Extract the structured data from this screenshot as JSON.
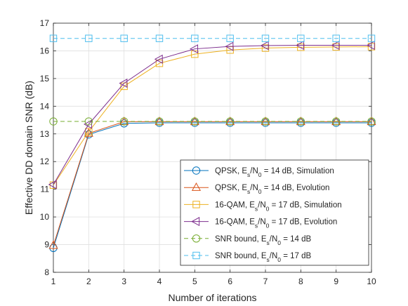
{
  "chart_data": {
    "type": "line",
    "xlabel": "Number of iterations",
    "ylabel": "Effective DD domain SNR (dB)",
    "xlim": [
      1,
      10
    ],
    "ylim": [
      8,
      17
    ],
    "xticks": [
      "1",
      "2",
      "3",
      "4",
      "5",
      "6",
      "7",
      "8",
      "9",
      "10"
    ],
    "yticks": [
      "8",
      "9",
      "10",
      "11",
      "12",
      "13",
      "14",
      "15",
      "16",
      "17"
    ],
    "grid": true,
    "legend_position": "bottom-right",
    "x": [
      1,
      2,
      3,
      4,
      5,
      6,
      7,
      8,
      9,
      10
    ],
    "series": [
      {
        "name_prefix": "QPSK, E",
        "name_mid": "/N",
        "name_suffix": " = 14 dB, Simulation",
        "color": "#0072BD",
        "marker": "circle",
        "dash": "solid",
        "values": [
          8.88,
          12.98,
          13.38,
          13.4,
          13.4,
          13.4,
          13.4,
          13.4,
          13.4,
          13.4
        ]
      },
      {
        "name_prefix": "QPSK, E",
        "name_mid": "/N",
        "name_suffix": " = 14 dB, Evolution",
        "color": "#D95319",
        "marker": "triangle",
        "dash": "solid",
        "values": [
          8.97,
          13.02,
          13.44,
          13.44,
          13.44,
          13.44,
          13.44,
          13.44,
          13.44,
          13.44
        ]
      },
      {
        "name_prefix": "16-QAM, E",
        "name_mid": "/N",
        "name_suffix": " = 17 dB, Simulation",
        "color": "#EDB120",
        "marker": "square",
        "dash": "solid",
        "values": [
          11.15,
          13.08,
          14.72,
          15.55,
          15.88,
          16.03,
          16.1,
          16.13,
          16.14,
          16.15
        ]
      },
      {
        "name_prefix": "16-QAM, E",
        "name_mid": "/N",
        "name_suffix": " = 17 dB, Evolution",
        "color": "#7E2F8E",
        "marker": "triangle-left",
        "dash": "solid",
        "values": [
          11.17,
          13.35,
          14.83,
          15.7,
          16.07,
          16.16,
          16.19,
          16.2,
          16.2,
          16.2
        ]
      },
      {
        "name_prefix": "SNR bound, E",
        "name_mid": "/N",
        "name_suffix": " = 14 dB",
        "color": "#77AC30",
        "marker": "circle",
        "dash": "dashed",
        "values": [
          13.45,
          13.45,
          13.45,
          13.45,
          13.45,
          13.45,
          13.45,
          13.45,
          13.45,
          13.45
        ]
      },
      {
        "name_prefix": "SNR bound, E",
        "name_mid": "/N",
        "name_suffix": " = 17 dB",
        "color": "#4DBEEE",
        "marker": "square",
        "dash": "dashed",
        "values": [
          16.45,
          16.45,
          16.45,
          16.45,
          16.45,
          16.45,
          16.45,
          16.45,
          16.45,
          16.45
        ]
      }
    ]
  }
}
